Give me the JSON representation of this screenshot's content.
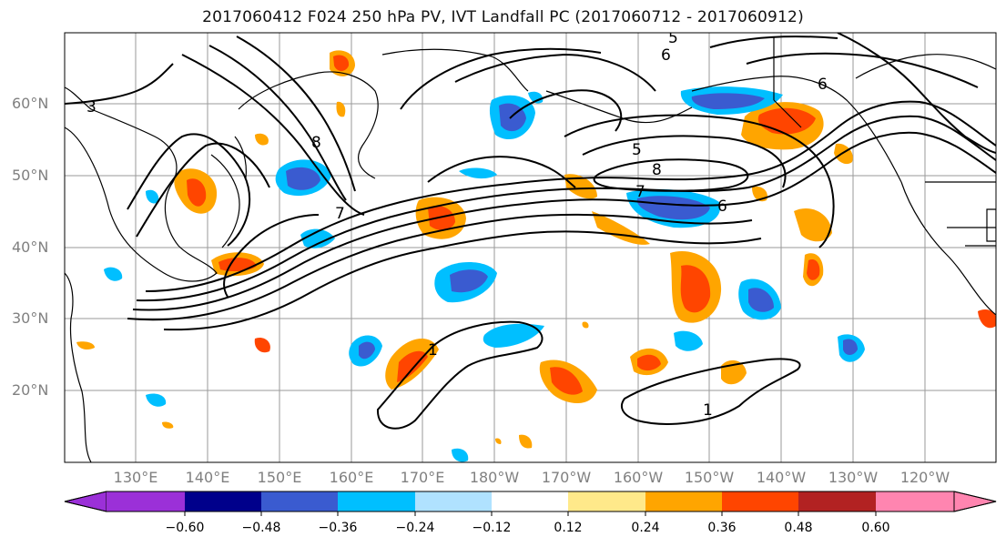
{
  "title": "2017060412 F024 250 hPa PV, IVT Landfall PC (2017060712 - 2017060912)",
  "lat_labels": [
    "60°N",
    "50°N",
    "40°N",
    "30°N",
    "20°N"
  ],
  "lon_labels": [
    "130°E",
    "140°E",
    "150°E",
    "160°E",
    "170°E",
    "180°W",
    "170°W",
    "160°W",
    "150°W",
    "140°W",
    "130°W",
    "120°W"
  ],
  "contour_labels": {
    "c3": "3",
    "c7a": "7",
    "c8a": "8",
    "c5a": "5",
    "c6a": "6",
    "c6b": "6",
    "c8b": "8",
    "c7b": "7",
    "c5b": "5",
    "c6c": "6",
    "c1a": "1",
    "c1b": "1"
  },
  "colorbar": {
    "ticks": [
      "−0.60",
      "−0.48",
      "−0.36",
      "−0.24",
      "−0.12",
      "0.12",
      "0.24",
      "0.36",
      "0.48",
      "0.60"
    ],
    "colors": [
      "#9b30d8",
      "#00008b",
      "#3a5bd0",
      "#00bfff",
      "#b0e2ff",
      "#ffffff",
      "#ffe98a",
      "#ffa500",
      "#ff4500",
      "#b22222",
      "#ff85b0"
    ]
  },
  "colors": {
    "land_outline": "#000000",
    "grid": "#9a9a9a",
    "contour": "#000000",
    "label_gray": "#808080"
  }
}
